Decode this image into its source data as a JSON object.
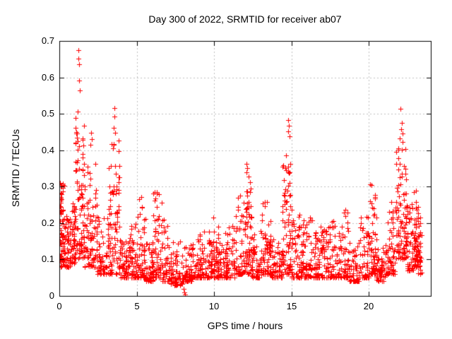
{
  "chart_data": {
    "type": "scatter",
    "title": "Day 300 of 2022, SRMTID for receiver ab07",
    "xlabel": "GPS time / hours",
    "ylabel": "SRMTID / TECUs",
    "xlim": [
      0,
      24
    ],
    "ylim": [
      0,
      0.7
    ],
    "xtick_vals": [
      0,
      5,
      10,
      15,
      20
    ],
    "xtick_labels": [
      "0",
      "5",
      "10",
      "15",
      "20"
    ],
    "ytick_vals": [
      0,
      0.1,
      0.2,
      0.3,
      0.4,
      0.5,
      0.6,
      0.7
    ],
    "ytick_labels": [
      "0",
      "0.1",
      "0.2",
      "0.3",
      "0.4",
      "0.5",
      "0.6",
      "0.7"
    ],
    "grid": true,
    "legend": "none",
    "marker": {
      "glyph": "plus",
      "color": "#ff0000",
      "size": 7
    },
    "grid_color": "#c0c0c0",
    "axis_color": "#000000",
    "seed": 300,
    "note": "point_bins = [x_start_hr, x_end_hr, n_points, y_min_TECU, y_max_TECU, skew_exponent] estimated from pixel envelope; outlier_points are individually visible markers",
    "point_bins": [
      [
        0.0,
        0.3,
        70,
        0.08,
        0.31,
        1.5
      ],
      [
        0.3,
        0.7,
        52,
        0.08,
        0.22,
        2.0
      ],
      [
        0.7,
        1.0,
        46,
        0.09,
        0.26,
        1.8
      ],
      [
        1.0,
        1.6,
        90,
        0.1,
        0.48,
        1.5
      ],
      [
        1.6,
        2.4,
        80,
        0.08,
        0.38,
        1.9
      ],
      [
        2.4,
        3.2,
        70,
        0.06,
        0.22,
        2.2
      ],
      [
        3.2,
        3.9,
        85,
        0.06,
        0.43,
        1.5
      ],
      [
        3.9,
        4.5,
        58,
        0.05,
        0.16,
        2.2
      ],
      [
        4.5,
        5.0,
        55,
        0.05,
        0.2,
        2.2
      ],
      [
        5.0,
        5.6,
        62,
        0.05,
        0.28,
        2.3
      ],
      [
        5.6,
        6.0,
        46,
        0.04,
        0.15,
        2.2
      ],
      [
        6.0,
        6.6,
        62,
        0.05,
        0.29,
        2.3
      ],
      [
        6.6,
        7.2,
        55,
        0.04,
        0.22,
        2.3
      ],
      [
        7.2,
        8.0,
        62,
        0.03,
        0.15,
        2.2
      ],
      [
        8.0,
        8.6,
        55,
        0.04,
        0.14,
        2.2
      ],
      [
        8.6,
        9.3,
        62,
        0.05,
        0.18,
        2.2
      ],
      [
        9.3,
        10.0,
        62,
        0.05,
        0.22,
        2.3
      ],
      [
        10.0,
        10.7,
        62,
        0.05,
        0.19,
        2.2
      ],
      [
        10.7,
        11.4,
        62,
        0.05,
        0.22,
        2.2
      ],
      [
        11.4,
        12.0,
        62,
        0.06,
        0.28,
        2.3
      ],
      [
        12.0,
        12.4,
        62,
        0.06,
        0.33,
        2.0
      ],
      [
        12.4,
        13.1,
        62,
        0.05,
        0.18,
        2.2
      ],
      [
        13.1,
        13.7,
        62,
        0.06,
        0.26,
        2.3
      ],
      [
        13.7,
        14.4,
        58,
        0.05,
        0.16,
        2.2
      ],
      [
        14.4,
        15.0,
        75,
        0.06,
        0.4,
        1.7
      ],
      [
        15.0,
        15.7,
        62,
        0.05,
        0.23,
        2.3
      ],
      [
        15.7,
        16.5,
        65,
        0.05,
        0.22,
        2.3
      ],
      [
        16.5,
        17.2,
        62,
        0.05,
        0.2,
        2.3
      ],
      [
        17.2,
        18.0,
        65,
        0.05,
        0.21,
        2.3
      ],
      [
        18.0,
        18.7,
        62,
        0.05,
        0.24,
        2.3
      ],
      [
        18.7,
        19.4,
        55,
        0.04,
        0.16,
        2.2
      ],
      [
        19.4,
        20.0,
        55,
        0.05,
        0.22,
        2.3
      ],
      [
        20.0,
        20.5,
        62,
        0.06,
        0.31,
        2.0
      ],
      [
        20.5,
        21.1,
        55,
        0.04,
        0.14,
        2.2
      ],
      [
        21.1,
        21.7,
        62,
        0.06,
        0.26,
        2.1
      ],
      [
        21.7,
        22.4,
        85,
        0.1,
        0.44,
        1.5
      ],
      [
        22.4,
        22.9,
        58,
        0.07,
        0.26,
        2.1
      ],
      [
        22.9,
        23.3,
        70,
        0.08,
        0.29,
        1.6
      ],
      [
        23.1,
        23.45,
        14,
        0.06,
        0.18,
        2.0
      ]
    ],
    "outlier_points": [
      [
        1.22,
        0.675
      ],
      [
        1.24,
        0.651
      ],
      [
        1.26,
        0.636
      ],
      [
        1.29,
        0.592
      ],
      [
        1.31,
        0.565
      ],
      [
        1.2,
        0.507
      ],
      [
        1.07,
        0.489
      ],
      [
        2.05,
        0.447
      ],
      [
        2.1,
        0.431
      ],
      [
        2.03,
        0.415
      ],
      [
        3.55,
        0.515
      ],
      [
        3.58,
        0.492
      ],
      [
        3.52,
        0.462
      ],
      [
        3.61,
        0.447
      ],
      [
        12.1,
        0.362
      ],
      [
        12.13,
        0.351
      ],
      [
        12.08,
        0.34
      ],
      [
        14.8,
        0.482
      ],
      [
        14.83,
        0.467
      ],
      [
        14.78,
        0.452
      ],
      [
        14.86,
        0.438
      ],
      [
        22.05,
        0.513
      ],
      [
        22.12,
        0.476
      ],
      [
        22.08,
        0.457
      ],
      [
        22.18,
        0.446
      ],
      [
        22.01,
        0.432
      ],
      [
        0.05,
        0.31
      ],
      [
        0.08,
        0.283
      ],
      [
        7.35,
        0.034
      ],
      [
        8.04,
        0.02
      ],
      [
        8.09,
        0.01
      ],
      [
        8.11,
        0.004
      ],
      [
        20.15,
        0.305
      ],
      [
        23.05,
        0.289
      ],
      [
        5.3,
        0.272
      ],
      [
        6.3,
        0.286
      ],
      [
        18.5,
        0.237
      ],
      [
        13.4,
        0.258
      ]
    ]
  }
}
